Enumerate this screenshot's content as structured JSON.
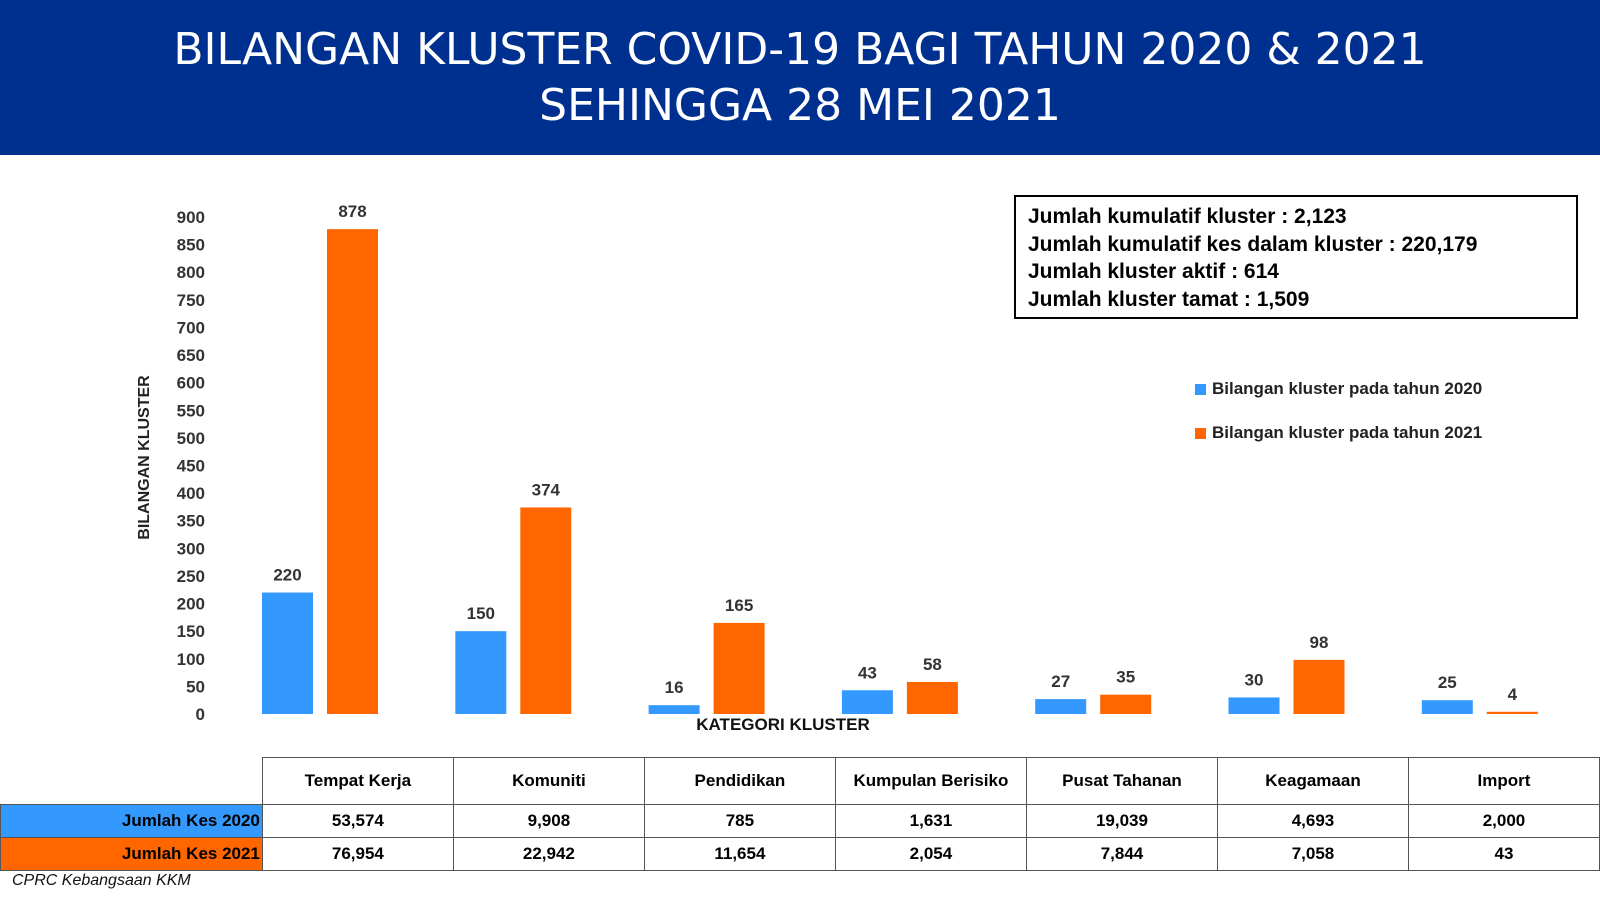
{
  "title": {
    "line1": "BILANGAN KLUSTER COVID-19 BAGI TAHUN 2020 & 2021",
    "line2": "SEHINGGA 28 MEI 2021"
  },
  "chart_data": {
    "type": "bar",
    "title": "BILANGAN KLUSTER COVID-19 BAGI TAHUN 2020 & 2021 SEHINGGA 28 MEI 2021",
    "xlabel": "KATEGORI KLUSTER",
    "ylabel": "BILANGAN KLUSTER",
    "ylim": [
      0,
      900
    ],
    "yticks": [
      0,
      50,
      100,
      150,
      200,
      250,
      300,
      350,
      400,
      450,
      500,
      550,
      600,
      650,
      700,
      750,
      800,
      850,
      900
    ],
    "grid": false,
    "legend_position": "right",
    "categories": [
      "Tempat Kerja",
      "Komuniti",
      "Pendidikan",
      "Kumpulan Berisiko",
      "Pusat Tahanan",
      "Keagamaan",
      "Import"
    ],
    "series": [
      {
        "name": "Bilangan kluster pada tahun 2020",
        "color": "#3399ff",
        "values": [
          220,
          150,
          16,
          43,
          27,
          30,
          25
        ]
      },
      {
        "name": "Bilangan kluster pada tahun 2021",
        "color": "#ff6600",
        "values": [
          878,
          374,
          165,
          58,
          35,
          98,
          4
        ]
      }
    ]
  },
  "summary": {
    "line1": "Jumlah kumulatif kluster : 2,123",
    "line2": "Jumlah kumulatif kes dalam kluster : 220,179",
    "line3": "Jumlah kluster aktif : 614",
    "line4": "Jumlah kluster tamat : 1,509"
  },
  "table": {
    "rows": [
      {
        "label": "Jumlah Kes 2020",
        "color": "#3399ff",
        "values": [
          "53,574",
          "9,908",
          "785",
          "1,631",
          "19,039",
          "4,693",
          "2,000"
        ]
      },
      {
        "label": "Jumlah Kes 2021",
        "color": "#ff6600",
        "values": [
          "76,954",
          "22,942",
          "11,654",
          "2,054",
          "7,844",
          "7,058",
          "43"
        ]
      }
    ]
  },
  "source": "CPRC Kebangsaan KKM"
}
